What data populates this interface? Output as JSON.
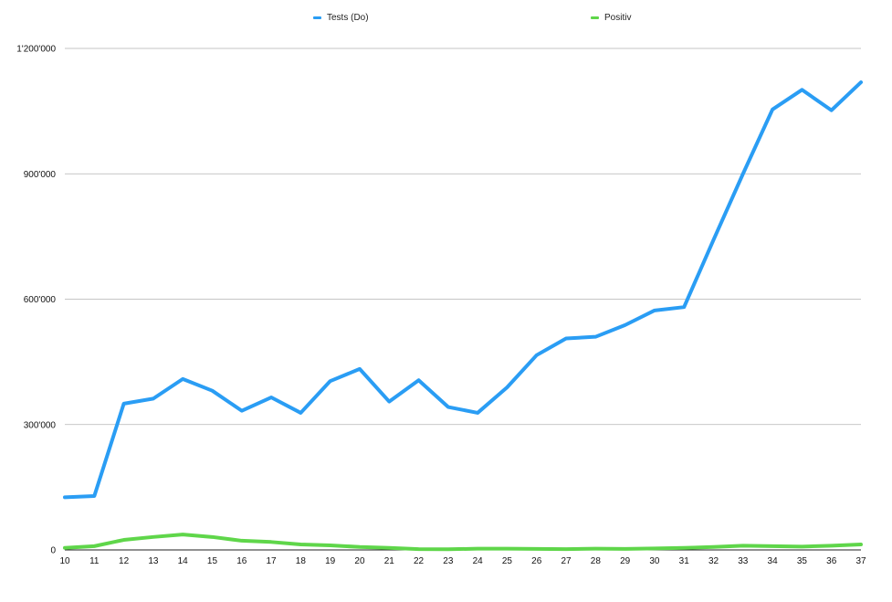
{
  "chart_data": {
    "type": "line",
    "title": "",
    "xlabel": "",
    "ylabel": "",
    "x": [
      "10",
      "11",
      "12",
      "13",
      "14",
      "15",
      "16",
      "17",
      "18",
      "19",
      "20",
      "21",
      "22",
      "23",
      "24",
      "25",
      "26",
      "27",
      "28",
      "29",
      "30",
      "31",
      "32",
      "33",
      "34",
      "35",
      "36",
      "37"
    ],
    "ylim": [
      0,
      1200000
    ],
    "yticks": [
      0,
      300000,
      600000,
      900000,
      1200000
    ],
    "ytick_labels": [
      "0",
      "300'000",
      "600'000",
      "900'000",
      "1'200'000"
    ],
    "grid": "horizontal",
    "legend_position": "top",
    "series": [
      {
        "name": "Tests (Do)",
        "color": "#2a9df4",
        "values": [
          126000,
          129000,
          350000,
          362000,
          409000,
          381000,
          333000,
          365000,
          328000,
          404000,
          433000,
          355000,
          406000,
          342000,
          328000,
          389000,
          466000,
          506000,
          510000,
          538000,
          573000,
          581000,
          742000,
          900000,
          1054000,
          1101000,
          1052000,
          1119000
        ]
      },
      {
        "name": "Positiv",
        "color": "#5fd64a",
        "values": [
          5000,
          9000,
          24000,
          31000,
          37000,
          31000,
          22000,
          19000,
          13000,
          11000,
          7000,
          5000,
          2000,
          1500,
          3000,
          3000,
          2500,
          2000,
          3000,
          2500,
          3500,
          5000,
          7000,
          10000,
          9000,
          8000,
          10000,
          13000
        ]
      }
    ]
  }
}
